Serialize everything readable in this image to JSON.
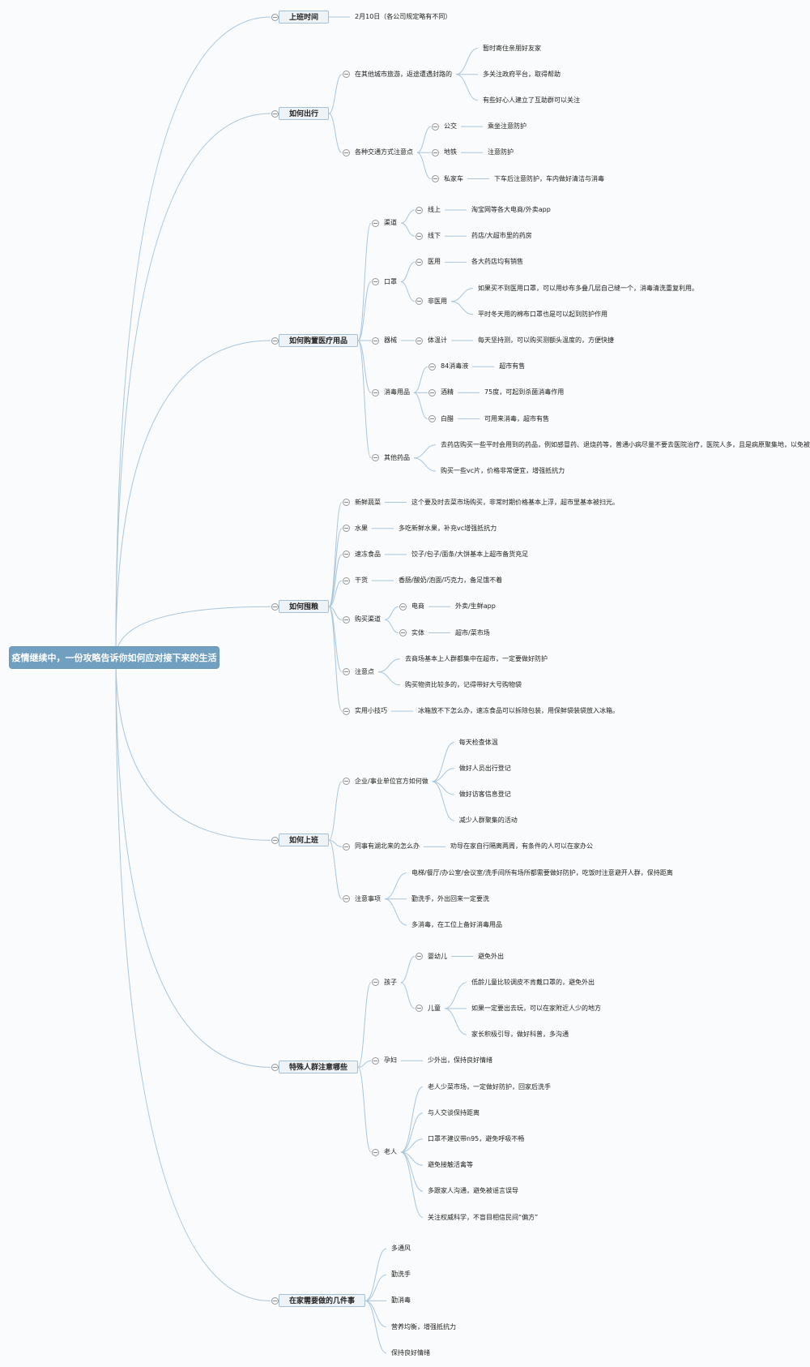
{
  "colors": {
    "line": "#a9c6dc",
    "root_bg": "#719fbf",
    "topic_bg": "#eef3f8",
    "topic_border": "#a4c0d6",
    "text": "#222222"
  },
  "icons": {
    "toggle": "collapse-minus-circle-icon"
  },
  "root": {
    "label": "疫情继续中，一份攻略告诉你如何应对接下来的生活",
    "children": [
      {
        "label": "上班时间",
        "children": [
          {
            "label": "2月10日（各公司规定略有不同）"
          }
        ]
      },
      {
        "label": "如何出行",
        "children": [
          {
            "label": "在其他城市旅游，返途遭遇封路的",
            "children": [
              {
                "label": "暂时寄住亲朋好友家"
              },
              {
                "label": "多关注政府平台，取得帮助"
              },
              {
                "label": "有些好心人建立了互助群可以关注"
              }
            ]
          },
          {
            "label": "各种交通方式注意点",
            "children": [
              {
                "label": "公交",
                "children": [
                  {
                    "label": "乘坐注意防护"
                  }
                ]
              },
              {
                "label": "地铁",
                "children": [
                  {
                    "label": "注意防护"
                  }
                ]
              },
              {
                "label": "私家车",
                "children": [
                  {
                    "label": "下车后注意防护，车内做好清洁与消毒"
                  }
                ]
              }
            ]
          }
        ]
      },
      {
        "label": "如何购置医疗用品",
        "children": [
          {
            "label": "渠道",
            "children": [
              {
                "label": "线上",
                "children": [
                  {
                    "label": "淘宝网等各大电商/外卖app"
                  }
                ]
              },
              {
                "label": "线下",
                "children": [
                  {
                    "label": "药店/大超市里的药房"
                  }
                ]
              }
            ]
          },
          {
            "label": "口罩",
            "children": [
              {
                "label": "医用",
                "children": [
                  {
                    "label": "各大药店均有销售"
                  }
                ]
              },
              {
                "label": "非医用",
                "children": [
                  {
                    "label": "如果买不到医用口罩，可以用纱布多叠几层自己缝一个，消毒清洗重复利用。"
                  },
                  {
                    "label": "平时冬天用的棉布口罩也是可以起到防护作用"
                  }
                ]
              }
            ]
          },
          {
            "label": "器械",
            "children": [
              {
                "label": "体温计",
                "children": [
                  {
                    "label": "每天坚持测，可以购买测额头温度的，方便快捷"
                  }
                ]
              }
            ]
          },
          {
            "label": "消毒用品",
            "children": [
              {
                "label": "84消毒液",
                "children": [
                  {
                    "label": "超市有售"
                  }
                ]
              },
              {
                "label": "酒精",
                "children": [
                  {
                    "label": "75度，可起到杀菌消毒作用"
                  }
                ]
              },
              {
                "label": "白醋",
                "children": [
                  {
                    "label": "可用来消毒，超市有售"
                  }
                ]
              }
            ]
          },
          {
            "label": "其他药品",
            "children": [
              {
                "label": "去药店购买一些平时会用到的药品，例如感冒药、退烧药等，普通小病尽量不要去医院治疗，医院人多，且是病原聚集地，以免被感染。"
              },
              {
                "label": "购买一些vc片，价格非常便宜，增强抵抗力"
              }
            ]
          }
        ]
      },
      {
        "label": "如何囤粮",
        "children": [
          {
            "label": "新鲜蔬菜",
            "children": [
              {
                "label": "这个要及时去菜市场购买，非常时期价格基本上浮，超市里基本被扫光。"
              }
            ]
          },
          {
            "label": "水果",
            "children": [
              {
                "label": "多吃新鲜水果，补充vc增强抵抗力"
              }
            ]
          },
          {
            "label": "速冻食品",
            "children": [
              {
                "label": "饺子/包子/面条/大饼基本上超市备货充足"
              }
            ]
          },
          {
            "label": "干货",
            "children": [
              {
                "label": "香肠/酸奶/泡面/巧克力，备足饿不着"
              }
            ]
          },
          {
            "label": "购买渠道",
            "children": [
              {
                "label": "电商",
                "children": [
                  {
                    "label": "外卖/生鲜app"
                  }
                ]
              },
              {
                "label": "实体",
                "children": [
                  {
                    "label": "超市/菜市场"
                  }
                ]
              }
            ]
          },
          {
            "label": "注意点",
            "children": [
              {
                "label": "去商场基本上人群都集中在超市，一定要做好防护"
              },
              {
                "label": "购买物资比较多的，记得带好大号购物袋"
              }
            ]
          },
          {
            "label": "实用小技巧",
            "children": [
              {
                "label": "冰箱放不下怎么办，速冻食品可以拆除包装，用保鲜袋装袋放入冰箱。"
              }
            ]
          }
        ]
      },
      {
        "label": "如何上班",
        "children": [
          {
            "label": "企业/事业单位官方如何做",
            "children": [
              {
                "label": "每天检查体温"
              },
              {
                "label": "做好人员出行登记"
              },
              {
                "label": "做好访客信息登记"
              },
              {
                "label": "减少人群聚集的活动"
              }
            ]
          },
          {
            "label": "同事有湖北来的怎么办",
            "children": [
              {
                "label": "劝导在家自行隔离两周，有条件的人可以在家办公"
              }
            ]
          },
          {
            "label": "注意事项",
            "children": [
              {
                "label": "电梯/餐厅/办公室/会议室/洗手间所有场所都需要做好防护，吃饭时注意避开人群，保持距离"
              },
              {
                "label": "勤洗手，外出回来一定要洗"
              },
              {
                "label": "多消毒，在工位上备好消毒用品"
              }
            ]
          }
        ]
      },
      {
        "label": "特殊人群注意哪些",
        "children": [
          {
            "label": "孩子",
            "children": [
              {
                "label": "婴幼儿",
                "children": [
                  {
                    "label": "避免外出"
                  }
                ]
              },
              {
                "label": "儿童",
                "children": [
                  {
                    "label": "低龄儿童比较调皮不肯戴口罩的，避免外出"
                  },
                  {
                    "label": "如果一定要出去玩，可以在家附近人少的地方"
                  },
                  {
                    "label": "家长积极引导，做好科普，多沟通"
                  }
                ]
              }
            ]
          },
          {
            "label": "孕妇",
            "children": [
              {
                "label": "少外出，保持良好情绪"
              }
            ]
          },
          {
            "label": "老人",
            "children": [
              {
                "label": "老人少菜市场，一定做好防护，回家后洗手"
              },
              {
                "label": "与人交谈保持距离"
              },
              {
                "label": "口罩不建议带n95，避免呼吸不畅"
              },
              {
                "label": "避免接触活禽等"
              },
              {
                "label": "多跟家人沟通，避免被谣言误导"
              },
              {
                "label": "关注权威科学，不盲目相信民间“偏方”"
              }
            ]
          }
        ]
      },
      {
        "label": "在家需要做的几件事",
        "children": [
          {
            "label": "多通风"
          },
          {
            "label": "勤洗手"
          },
          {
            "label": "勤消毒"
          },
          {
            "label": "营养均衡，增强抵抗力"
          },
          {
            "label": "保持良好情绪"
          }
        ]
      }
    ]
  }
}
